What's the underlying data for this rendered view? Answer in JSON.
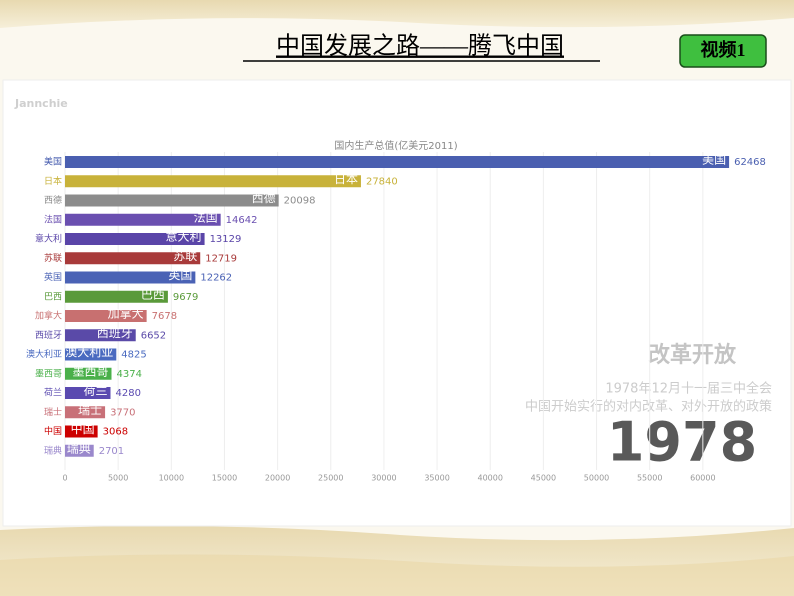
{
  "slide_title": "中国发展之路——腾飞中国",
  "button": "视频1",
  "watermark": "Jannchie",
  "chart_data": {
    "type": "bar",
    "orientation": "horizontal",
    "title": "国内生产总值(亿美元2011)",
    "categories": [
      "美国",
      "日本",
      "西德",
      "法国",
      "意大利",
      "苏联",
      "英国",
      "巴西",
      "加拿大",
      "西班牙",
      "澳大利亚",
      "墨西哥",
      "荷兰",
      "瑞士",
      "中国",
      "瑞典"
    ],
    "values": [
      62468,
      27840,
      20098,
      14642,
      13129,
      12719,
      12262,
      9679,
      7678,
      6652,
      4825,
      4374,
      4280,
      3770,
      3068,
      2701
    ],
    "colors": [
      "#4a5fb0",
      "#c8b23a",
      "#8c8c8c",
      "#6a4fb0",
      "#5a45a8",
      "#a83a3a",
      "#4a62b5",
      "#5a9a3a",
      "#c87070",
      "#5a4aa8",
      "#4a6ac0",
      "#4ab04a",
      "#5a4ab0",
      "#c87078",
      "#cc0000",
      "#9a88cc"
    ],
    "xlim": [
      0,
      65000
    ],
    "xticks": [
      0,
      5000,
      10000,
      15000,
      20000,
      25000,
      30000,
      35000,
      40000,
      45000,
      50000,
      55000,
      60000
    ],
    "grid": true,
    "annotations": {
      "event": "改革开放",
      "line1": "1978年12月十一届三中全会",
      "line2": "中国开始实行的对内改革、对外开放的政策",
      "year": "1978"
    }
  }
}
